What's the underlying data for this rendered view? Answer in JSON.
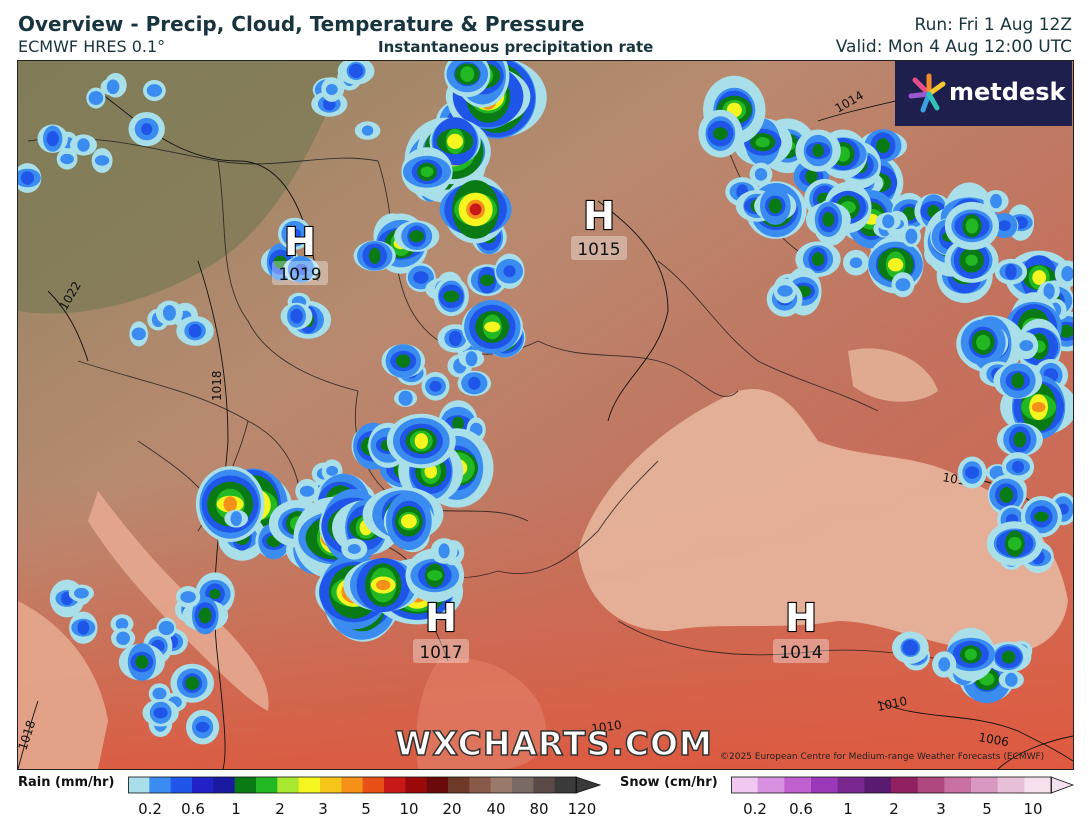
{
  "header": {
    "title": "Overview - Precip, Cloud, Temperature & Pressure",
    "model": "ECMWF HRES 0.1°",
    "subtitle": "Instantaneous precipitation rate",
    "run": "Run: Fri 1 Aug 12Z",
    "valid": "Valid: Mon 4 Aug 12:00 UTC"
  },
  "brand": {
    "name": "metdesk",
    "watermark": "WXCHARTS.COM",
    "copyright": "©2025 European Centre for Medium-range Weather Forecasts (ECMWF)"
  },
  "pressure_centres": [
    {
      "type": "H",
      "value": "1019"
    },
    {
      "type": "H",
      "value": "1015"
    },
    {
      "type": "H",
      "value": "1017"
    },
    {
      "type": "H",
      "value": "1014"
    }
  ],
  "isobar_labels": [
    "1014",
    "1018",
    "1018",
    "1010",
    "1010",
    "1006",
    "1010",
    "1022"
  ],
  "legend": {
    "rain": {
      "title": "Rain (mm/hr)",
      "ticks": [
        "0.2",
        "0.6",
        "1",
        "2",
        "3",
        "5",
        "10",
        "20",
        "40",
        "80",
        "120"
      ],
      "colors": [
        "#a8dfe8",
        "#3b8cf0",
        "#1f55e8",
        "#2222c8",
        "#1a1aa0",
        "#0a7a14",
        "#22b824",
        "#a8e830",
        "#f5f520",
        "#f5c518",
        "#f59018",
        "#e85018",
        "#c81818",
        "#9a0a0a",
        "#6a0a0a",
        "#6e3a28",
        "#8a5a48",
        "#9a7a6a",
        "#7a6a64",
        "#5a4a48",
        "#3a3a3a"
      ]
    },
    "snow": {
      "title": "Snow (cm/hr)",
      "ticks": [
        "0.2",
        "0.6",
        "1",
        "2",
        "3",
        "5",
        "10"
      ],
      "colors": [
        "#f0c8f0",
        "#d890e0",
        "#c060d0",
        "#9a38b8",
        "#7a2890",
        "#5a1a70",
        "#902060",
        "#b04880",
        "#c870a0",
        "#d898c0",
        "#e8c0d8",
        "#f5e0ee"
      ]
    }
  }
}
